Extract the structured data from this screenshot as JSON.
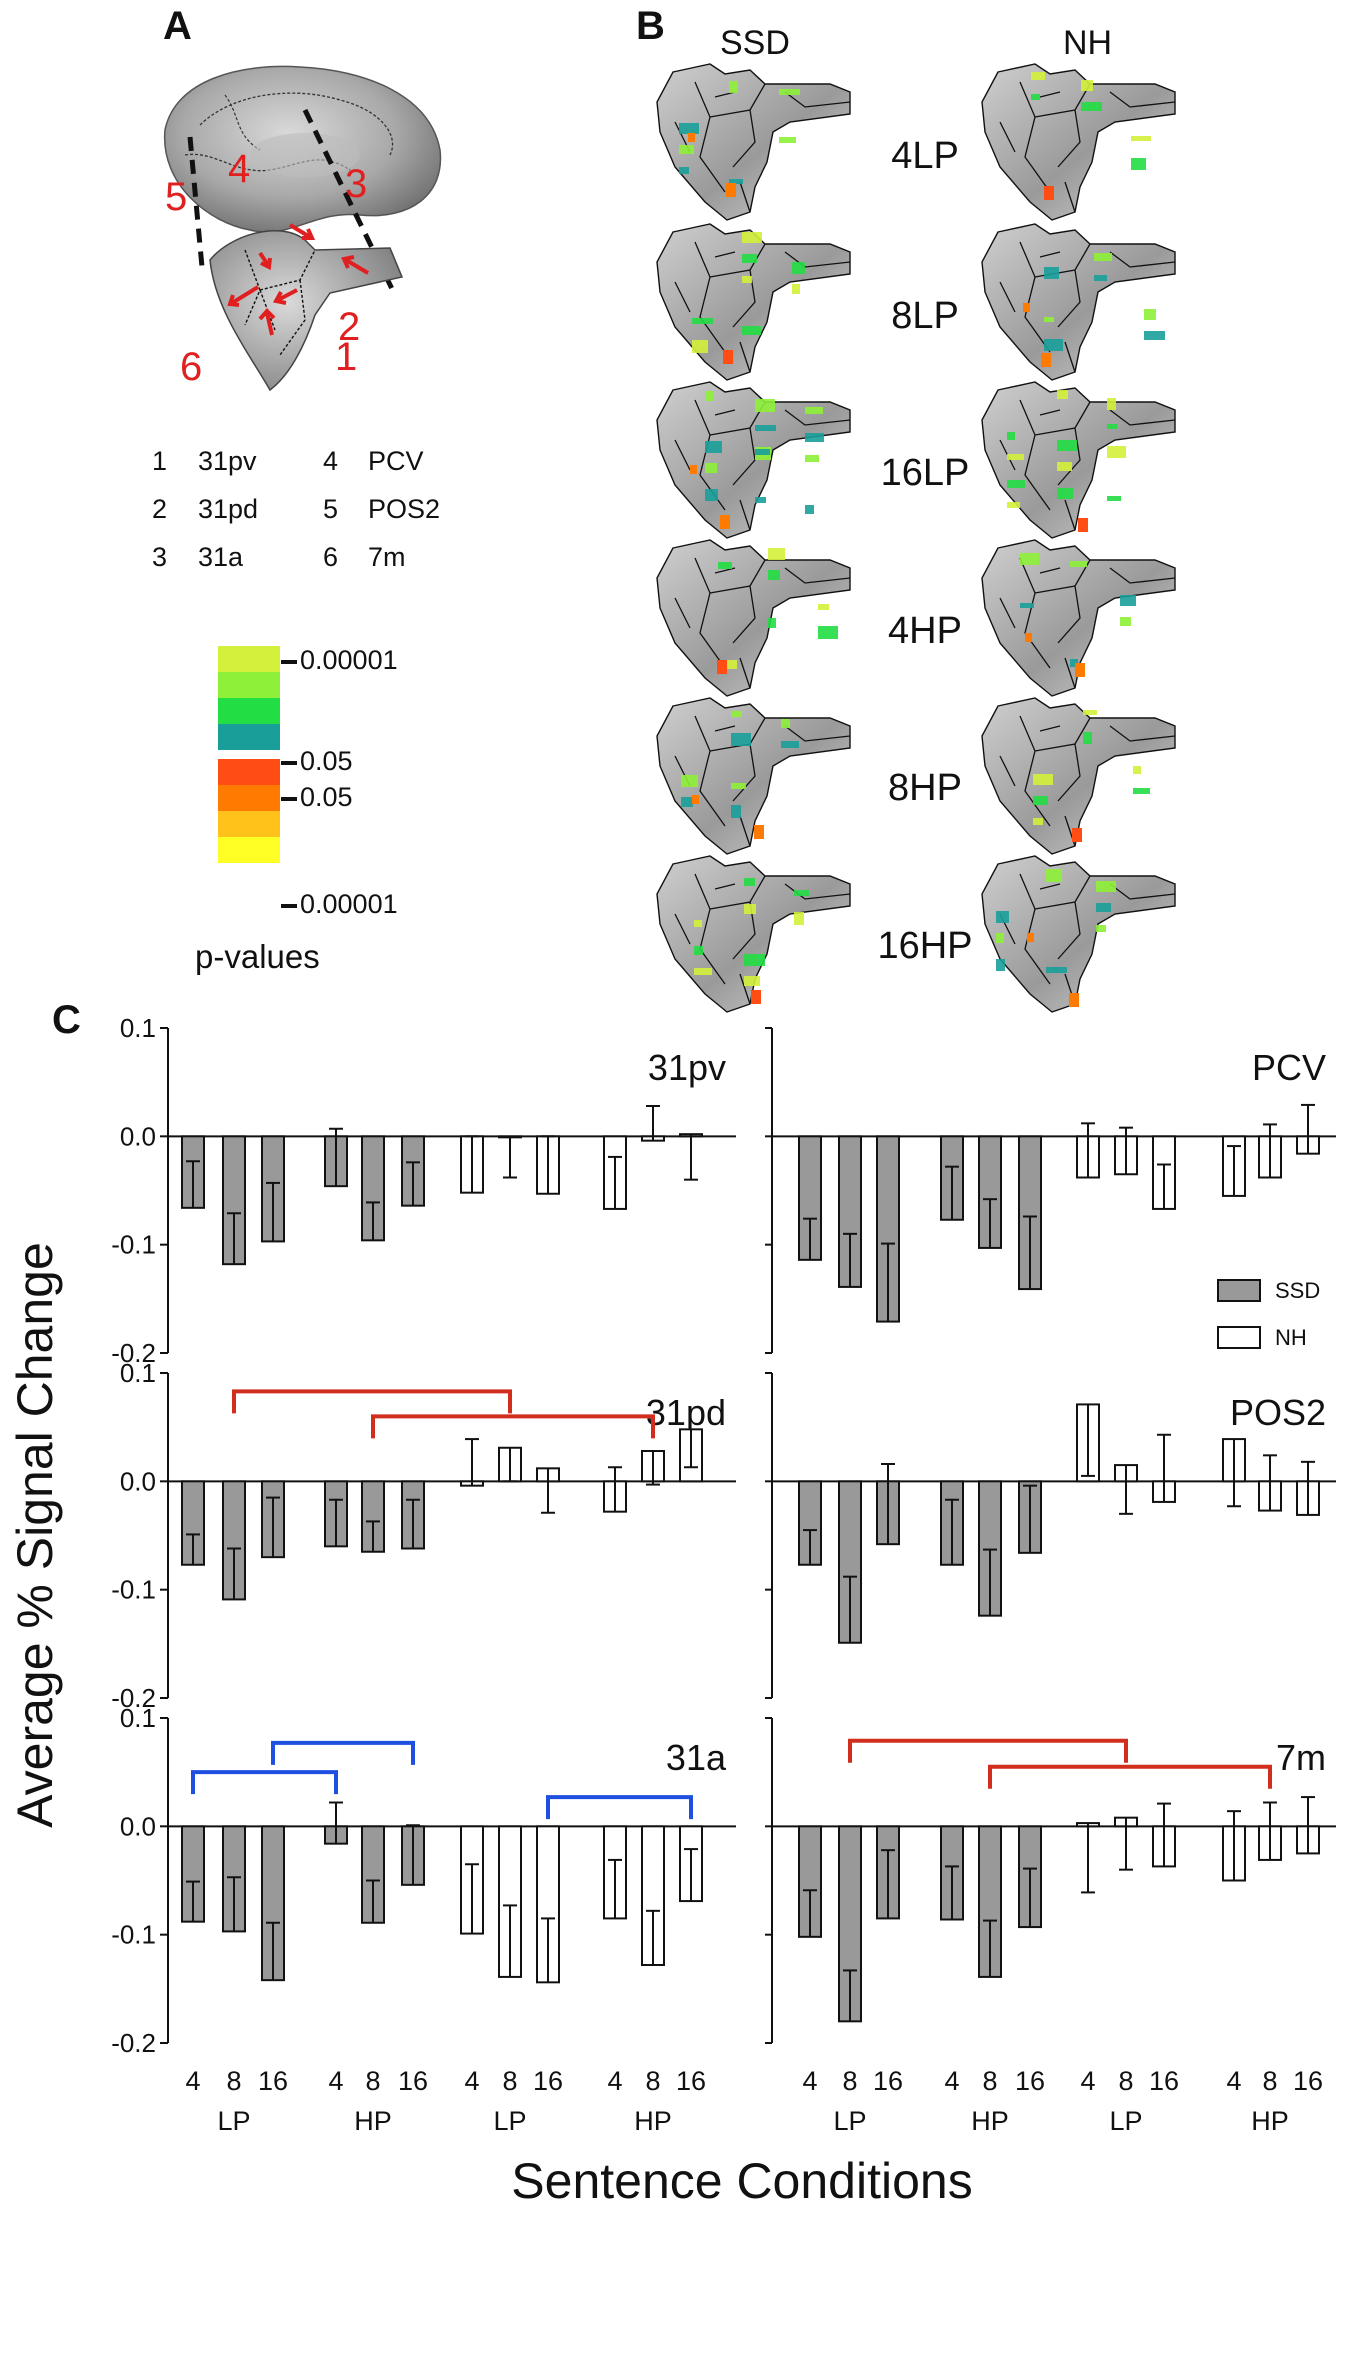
{
  "panels": {
    "a_label": "A",
    "b_label": "B",
    "c_label": "C"
  },
  "brain_arrows": [
    "1",
    "2",
    "3",
    "4",
    "5",
    "6"
  ],
  "region_legend": [
    {
      "num": "1",
      "name": "31pv"
    },
    {
      "num": "2",
      "name": "31pd"
    },
    {
      "num": "3",
      "name": "31a"
    },
    {
      "num": "4",
      "name": "PCV"
    },
    {
      "num": "5",
      "name": "POS2"
    },
    {
      "num": "6",
      "name": "7m"
    }
  ],
  "colorbar": {
    "green_colors": [
      "#d4f03a",
      "#8ef039",
      "#22dd44",
      "#1a9e9a"
    ],
    "orange_colors": [
      "#ff4d14",
      "#ff7a00",
      "#ffc21a",
      "#ffff26"
    ],
    "ticks": [
      "0.00001",
      "0.05",
      "0.05",
      "0.00001"
    ],
    "label": "p-values"
  },
  "maps": {
    "col_ssd": "SSD",
    "col_nh": "NH",
    "conditions": [
      "4LP",
      "8LP",
      "16LP",
      "4HP",
      "8HP",
      "16HP"
    ]
  },
  "chart_data": {
    "type": "bar",
    "ylabel": "Average % Signal Change",
    "xlabel": "Sentence Conditions",
    "ylim": [
      -0.2,
      0.1
    ],
    "yticks": [
      "0.1",
      "0.0",
      "-0.1",
      "-0.2"
    ],
    "categories": [
      "4",
      "8",
      "16",
      "4",
      "8",
      "16",
      "4",
      "8",
      "16",
      "4",
      "8",
      "16"
    ],
    "groups": [
      "LP",
      "HP",
      "LP",
      "HP"
    ],
    "legend": {
      "ssd": "SSD",
      "nh": "NH",
      "position": "right-middle of PCV panel"
    },
    "bar_group": [
      "SSD",
      "SSD",
      "SSD",
      "SSD",
      "SSD",
      "SSD",
      "NH",
      "NH",
      "NH",
      "NH",
      "NH",
      "NH"
    ],
    "colors": {
      "ssd": "#999999",
      "nh": "#ffffff",
      "red": "#d12e1e",
      "blue": "#1e4fe0"
    },
    "subplots": [
      {
        "region": "31pv",
        "values": [
          -0.066,
          -0.118,
          -0.097,
          -0.046,
          -0.096,
          -0.064,
          -0.052,
          0.0,
          -0.053,
          -0.067,
          -0.004,
          0.002
        ],
        "error": [
          0.043,
          0.047,
          0.054,
          0.053,
          0.035,
          0.04,
          0.052,
          0.038,
          0.053,
          0.048,
          0.032,
          0.042
        ],
        "brackets": []
      },
      {
        "region": "PCV",
        "values": [
          -0.114,
          -0.139,
          -0.171,
          -0.077,
          -0.103,
          -0.141,
          -0.038,
          -0.035,
          -0.067,
          -0.055,
          -0.038,
          -0.016
        ],
        "error": [
          0.038,
          0.049,
          0.072,
          0.049,
          0.045,
          0.067,
          0.05,
          0.043,
          0.041,
          0.046,
          0.049,
          0.045
        ],
        "brackets": []
      },
      {
        "region": "31pd",
        "values": [
          -0.077,
          -0.109,
          -0.07,
          -0.06,
          -0.065,
          -0.062,
          -0.004,
          0.031,
          0.012,
          -0.028,
          0.028,
          0.048
        ],
        "error": [
          0.028,
          0.047,
          0.055,
          0.043,
          0.028,
          0.045,
          0.043,
          0.031,
          0.041,
          0.041,
          0.031,
          0.035
        ],
        "brackets": [
          {
            "from": 1,
            "to": 7,
            "color": "red",
            "level": 0.083
          },
          {
            "from": 4,
            "to": 10,
            "color": "red",
            "level": 0.06
          }
        ]
      },
      {
        "region": "POS2",
        "values": [
          -0.077,
          -0.149,
          -0.058,
          -0.077,
          -0.124,
          -0.066,
          0.071,
          0.015,
          -0.019,
          0.039,
          -0.027,
          -0.031
        ],
        "error": [
          0.032,
          0.061,
          0.074,
          0.06,
          0.061,
          0.062,
          0.066,
          0.045,
          0.062,
          0.062,
          0.051,
          0.049
        ],
        "brackets": []
      },
      {
        "region": "31a",
        "values": [
          -0.088,
          -0.097,
          -0.142,
          -0.016,
          -0.089,
          -0.054,
          -0.099,
          -0.139,
          -0.144,
          -0.085,
          -0.128,
          -0.069
        ],
        "error": [
          0.037,
          0.05,
          0.053,
          0.038,
          0.039,
          0.055,
          0.064,
          0.066,
          0.059,
          0.054,
          0.05,
          0.048
        ],
        "brackets": [
          {
            "from": 0,
            "to": 3,
            "color": "blue",
            "level": 0.05
          },
          {
            "from": 2,
            "to": 5,
            "color": "blue",
            "level": 0.077
          },
          {
            "from": 8,
            "to": 11,
            "color": "blue",
            "level": 0.027
          }
        ]
      },
      {
        "region": "7m",
        "values": [
          -0.102,
          -0.18,
          -0.085,
          -0.086,
          -0.139,
          -0.093,
          0.003,
          0.008,
          -0.037,
          -0.05,
          -0.031,
          -0.025
        ],
        "error": [
          0.043,
          0.047,
          0.063,
          0.049,
          0.052,
          0.054,
          0.064,
          0.048,
          0.058,
          0.064,
          0.053,
          0.052
        ],
        "brackets": [
          {
            "from": 1,
            "to": 7,
            "color": "red",
            "level": 0.079
          },
          {
            "from": 4,
            "to": 10,
            "color": "red",
            "level": 0.055
          }
        ]
      }
    ]
  }
}
